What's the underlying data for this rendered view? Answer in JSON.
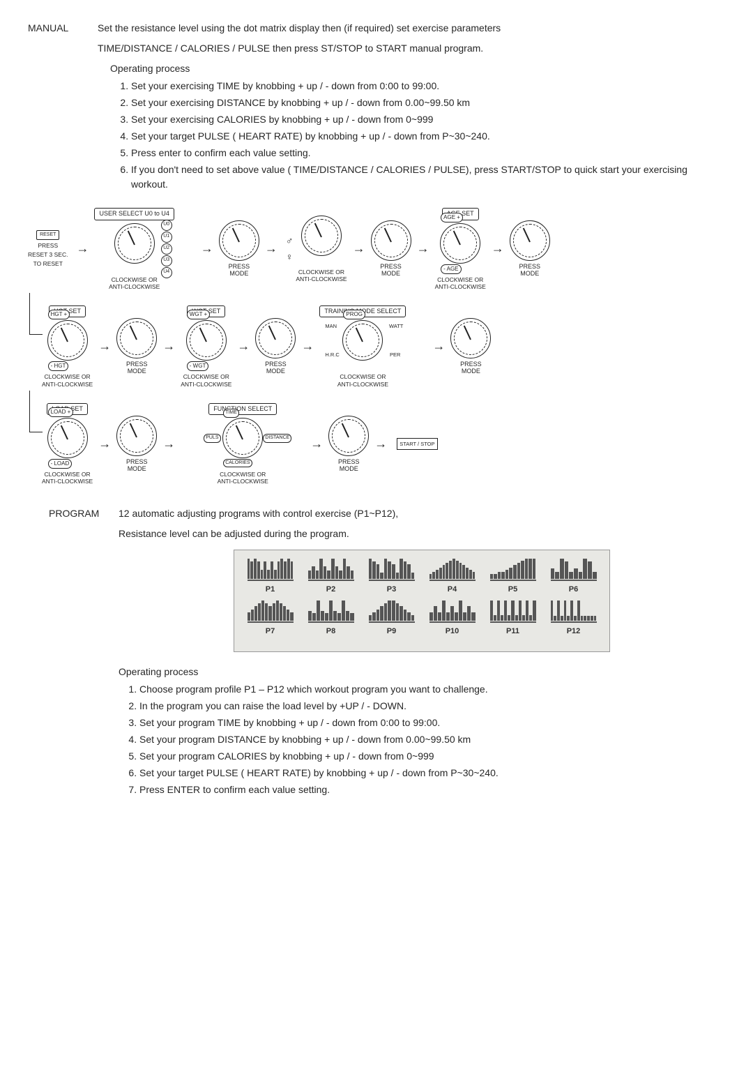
{
  "manual": {
    "label": "MANUAL",
    "intro1": "Set the resistance level using the dot matrix display then (if required) set exercise parameters",
    "intro2": "TIME/DISTANCE / CALORIES / PULSE then press ST/STOP to START manual program.",
    "opProcess": "Operating process",
    "steps": [
      "Set your exercising TIME by knobbing + up / - down from 0:00 to 99:00.",
      "Set your exercising DISTANCE by knobbing + up / - down from 0.00~99.50 km",
      "Set your exercising CALORIES by knobbing + up / - down from 0~999",
      "Set your target PULSE ( HEART RATE) by knobbing + up / - down from P~30~240.",
      "Press enter to confirm each value setting.",
      "If you don't need to set above value ( TIME/DISTANCE / CALORIES / PULSE), press START/STOP to quick start your exercising workout."
    ]
  },
  "flow": {
    "reset": {
      "btn": "RESET",
      "line1": "PRESS",
      "line2": "RESET 3 SEC.",
      "line3": "TO RESET"
    },
    "userSelect": "USER SELECT U0 to U4",
    "users": [
      "U0",
      "U1",
      "U2",
      "U3",
      "U4"
    ],
    "cwacw": "CLOCKWISE OR\nANTI-CLOCKWISE",
    "pressMode": "PRESS\nMODE",
    "ageSet": "AGE SET",
    "ageTop": "AGE +",
    "ageBot": "- AGE",
    "hgtSet": "HGT SET",
    "hgtTop": "HGT +",
    "hgtBot": "- HGT",
    "wgtSet": "WGT SET",
    "wgtTop": "WGT +",
    "wgtBot": "- WGT",
    "trainSelect": "TRAINING MODE SELECT",
    "modes": {
      "prog": "PROG",
      "watt": "WATT",
      "man": "MAN",
      "hrc": "H.R.C",
      "per": "PER"
    },
    "loadSet": "LOAD SET",
    "loadTop": "LOAD +",
    "loadBot": "- LOAD",
    "fnSelect": "FUNCTION SELECT",
    "fns": {
      "time": "TIME",
      "dist": "DISTANCE",
      "puls": "PULS",
      "cal": "CALORIES"
    },
    "startStop": "START / STOP"
  },
  "program": {
    "label": "PROGRAM",
    "intro1": "12 automatic adjusting programs with control exercise (P1~P12),",
    "intro2": "Resistance level can be adjusted during the program.",
    "profiles": [
      "P1",
      "P2",
      "P3",
      "P4",
      "P5",
      "P6",
      "P7",
      "P8",
      "P9",
      "P10",
      "P11",
      "P12"
    ],
    "opProcess": "Operating process",
    "steps": [
      "Choose program profile P1 – P12 which workout program you want to challenge.",
      "In the program you can raise the load level by +UP / - DOWN.",
      "Set your program TIME by knobbing + up / - down from 0:00 to 99:00.",
      "Set your program DISTANCE by knobbing + up / - down from 0.00~99.50 km",
      "Set your program CALORIES by knobbing + up / - down from 0~999",
      "Set your target PULSE ( HEART RATE) by knobbing + up / - down from P~30~240.",
      "Press ENTER to confirm each value setting."
    ]
  },
  "profileBars": {
    "P1": [
      7,
      6,
      7,
      6,
      3,
      6,
      3,
      6,
      3,
      6,
      7,
      6,
      7,
      6
    ],
    "P2": [
      2,
      3,
      2,
      5,
      3,
      2,
      5,
      3,
      2,
      5,
      3,
      2
    ],
    "P3": [
      7,
      6,
      5,
      2,
      7,
      6,
      5,
      2,
      7,
      6,
      5,
      2
    ],
    "P4": [
      2,
      3,
      4,
      5,
      6,
      7,
      8,
      9,
      8,
      7,
      6,
      5,
      4,
      3
    ],
    "P5": [
      2,
      2,
      3,
      3,
      4,
      5,
      6,
      7,
      8,
      9,
      9,
      9
    ],
    "P6": [
      3,
      2,
      6,
      5,
      2,
      3,
      2,
      6,
      5,
      2
    ],
    "P7": [
      3,
      4,
      5,
      6,
      7,
      6,
      5,
      6,
      7,
      6,
      5,
      4,
      3
    ],
    "P8": [
      4,
      3,
      8,
      4,
      3,
      8,
      4,
      3,
      8,
      4,
      3
    ],
    "P9": [
      2,
      3,
      4,
      5,
      6,
      7,
      7,
      6,
      5,
      4,
      3,
      2
    ],
    "P10": [
      3,
      5,
      3,
      7,
      3,
      5,
      3,
      7,
      3,
      5,
      3
    ],
    "P11": [
      7,
      2,
      7,
      2,
      7,
      2,
      7,
      2,
      7,
      2,
      7,
      2,
      7
    ],
    "P12": [
      8,
      2,
      8,
      2,
      8,
      2,
      8,
      2,
      8,
      2,
      2,
      2,
      2,
      2
    ]
  }
}
